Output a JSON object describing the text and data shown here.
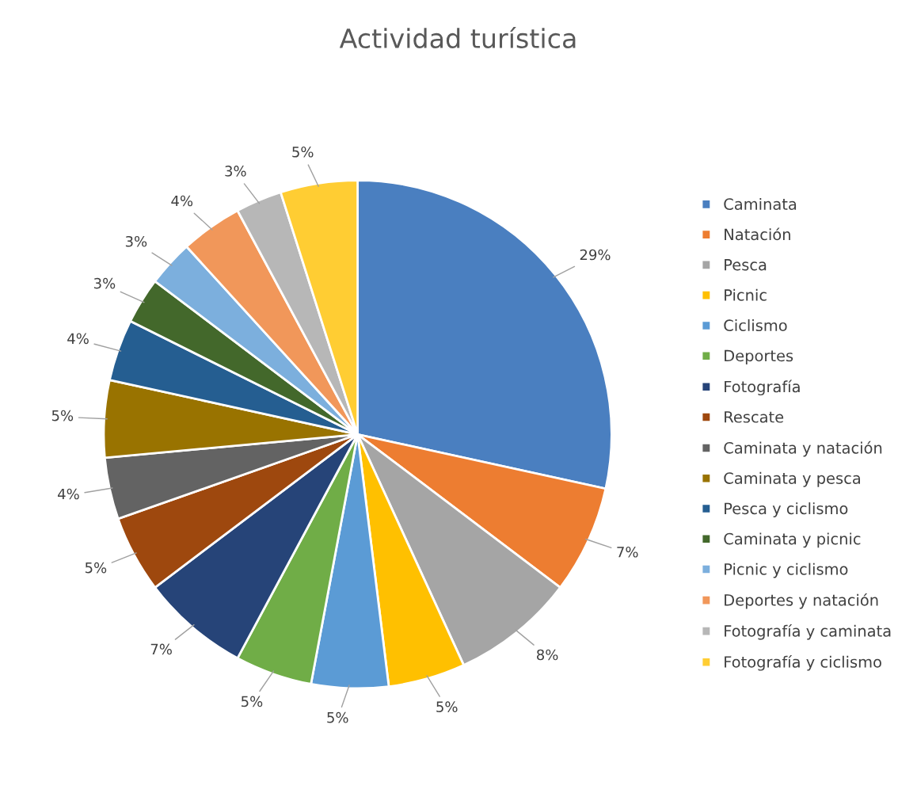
{
  "chart_data": {
    "type": "pie",
    "title": "Actividad turística",
    "categories": [
      "Caminata",
      "Natación",
      "Pesca",
      "Picnic",
      "Ciclismo",
      "Deportes",
      "Fotografía",
      "Rescate",
      "Caminata y natación",
      "Caminata y pesca",
      "Pesca y ciclismo",
      "Caminata y picnic",
      "Picnic y ciclismo",
      "Deportes y natación",
      "Fotografía y caminata",
      "Fotografía y ciclismo"
    ],
    "values": [
      29,
      7,
      8,
      5,
      5,
      5,
      7,
      5,
      4,
      5,
      4,
      3,
      3,
      4,
      3,
      5
    ],
    "value_labels": [
      "29%",
      "7%",
      "8%",
      "5%",
      "5%",
      "5%",
      "7%",
      "5%",
      "4%",
      "5%",
      "4%",
      "3%",
      "3%",
      "4%",
      "3%",
      "5%"
    ],
    "colors": [
      "#4a7fc0",
      "#ed7d31",
      "#a5a5a5",
      "#ffc000",
      "#5b9bd5",
      "#70ad47",
      "#264478",
      "#9e480e",
      "#636363",
      "#997300",
      "#255e91",
      "#43682b",
      "#7cafdd",
      "#f1975a",
      "#b7b7b7",
      "#ffcd33"
    ],
    "legend": "right"
  }
}
